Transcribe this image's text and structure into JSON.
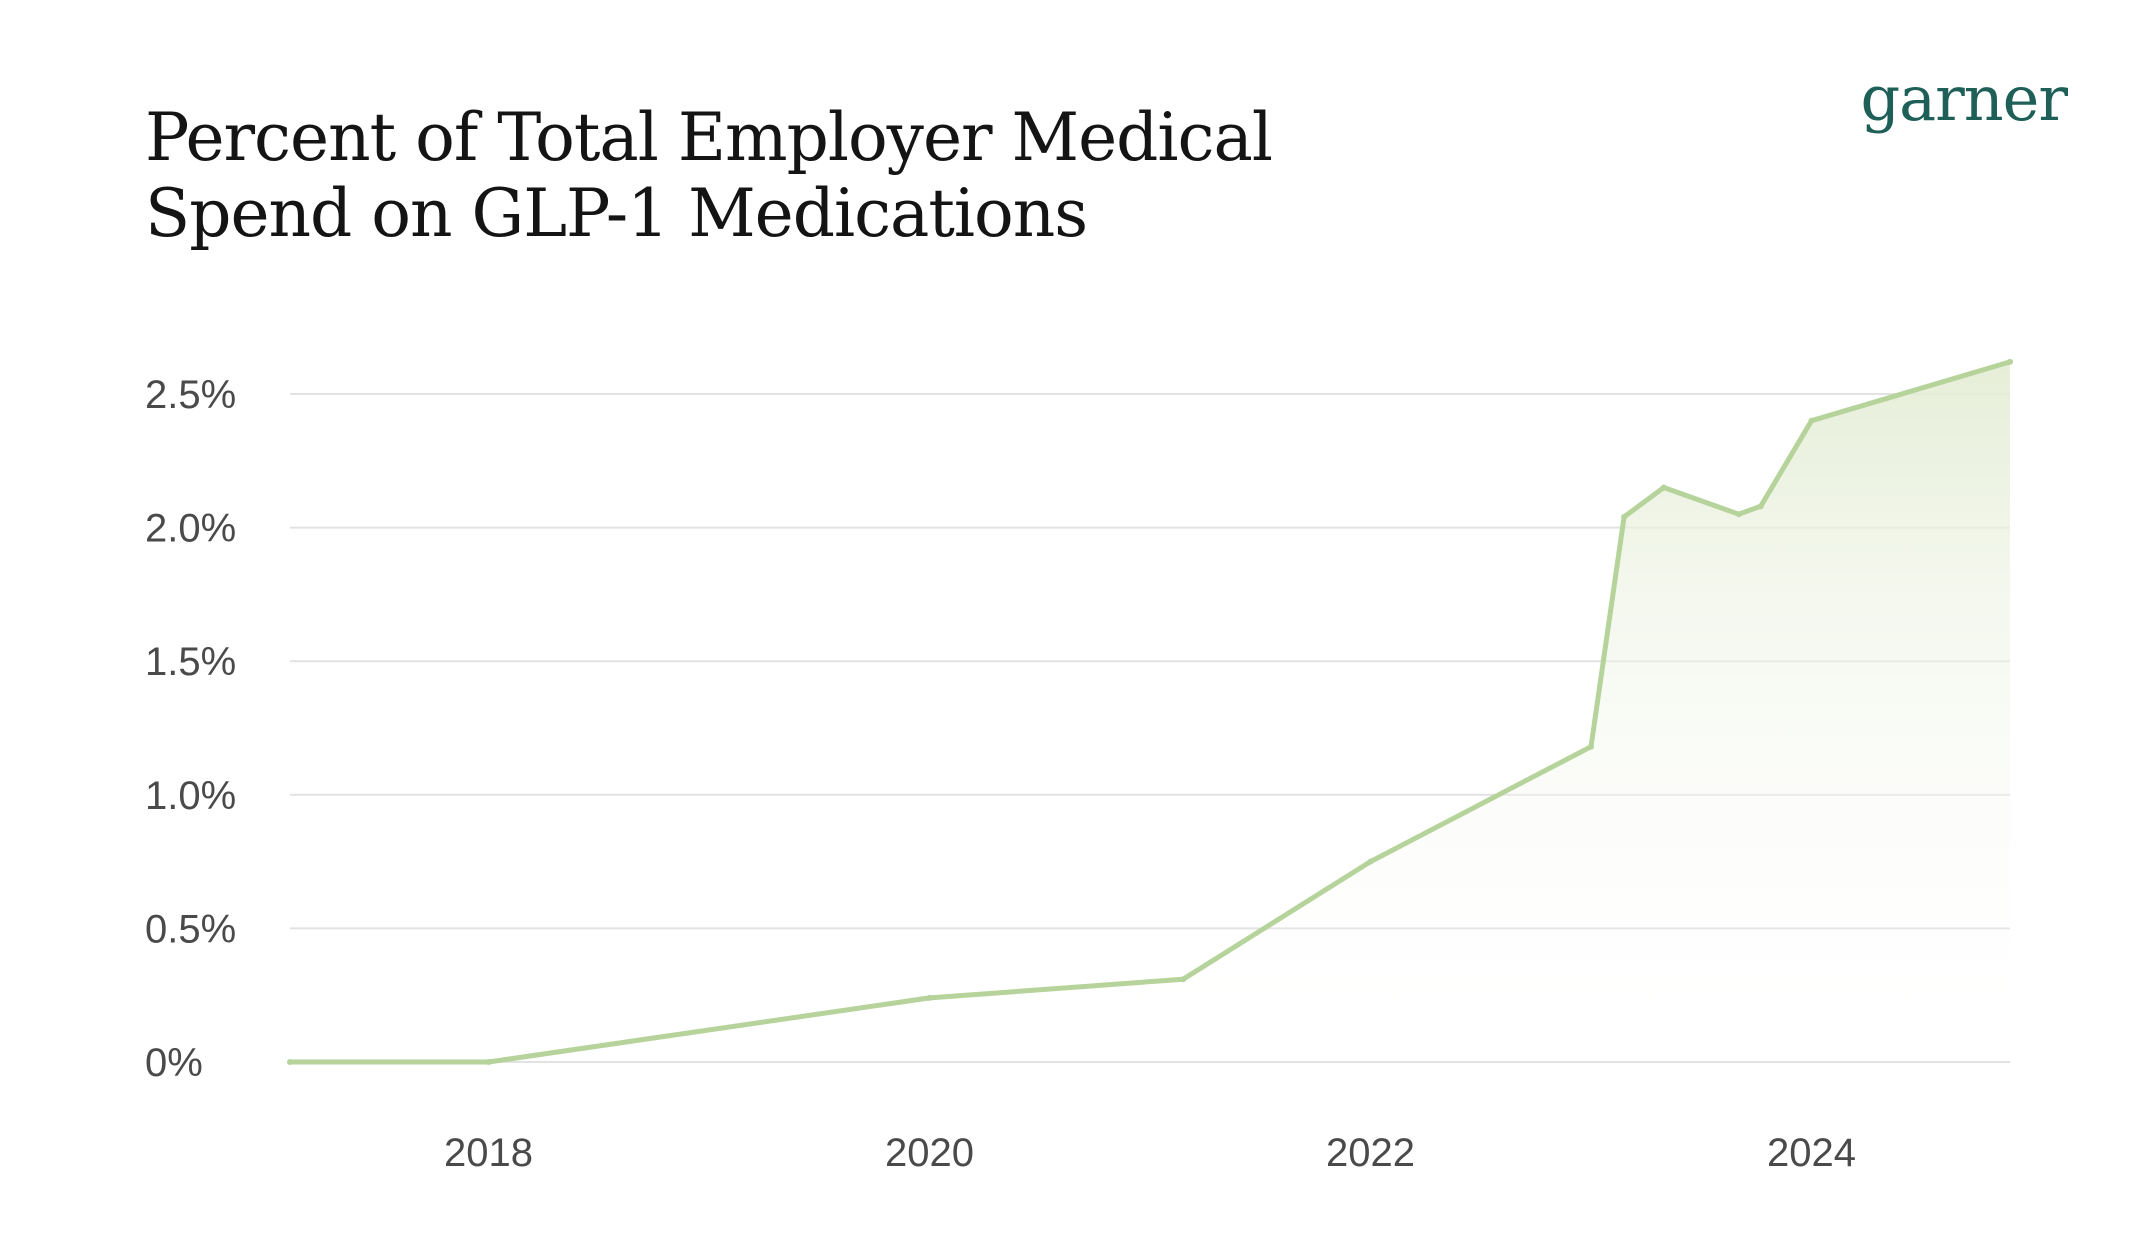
{
  "brand": {
    "logo_text": "garner"
  },
  "chart_data": {
    "type": "area",
    "title": "Percent of Total Employer Medical Spend on GLP-1 Medications",
    "xlabel": "",
    "ylabel": "",
    "x_tick_labels": [
      "2018",
      "2020",
      "2022",
      "2024"
    ],
    "x_ticks": [
      2018,
      2020,
      2022,
      2024
    ],
    "y_tick_labels": [
      "0%",
      "0.5%",
      "1.0%",
      "1.5%",
      "2.0%",
      "2.5%"
    ],
    "y_ticks": [
      0,
      0.5,
      1.0,
      1.5,
      2.0,
      2.5
    ],
    "xlim": [
      2017.1,
      2024.9
    ],
    "ylim": [
      0,
      2.6
    ],
    "grid": true,
    "line_color": "#b5d39a",
    "fill_color": "#e6eed8",
    "series": [
      {
        "x": [
          2017.1,
          2018.0,
          2020.0,
          2021.15,
          2022.0,
          2023.0,
          2023.15,
          2023.33,
          2023.67,
          2023.77,
          2024.0,
          2024.9
        ],
        "values": [
          0.0,
          0.0,
          0.24,
          0.31,
          0.75,
          1.18,
          2.04,
          2.15,
          2.05,
          2.08,
          2.4,
          2.62
        ]
      }
    ]
  }
}
